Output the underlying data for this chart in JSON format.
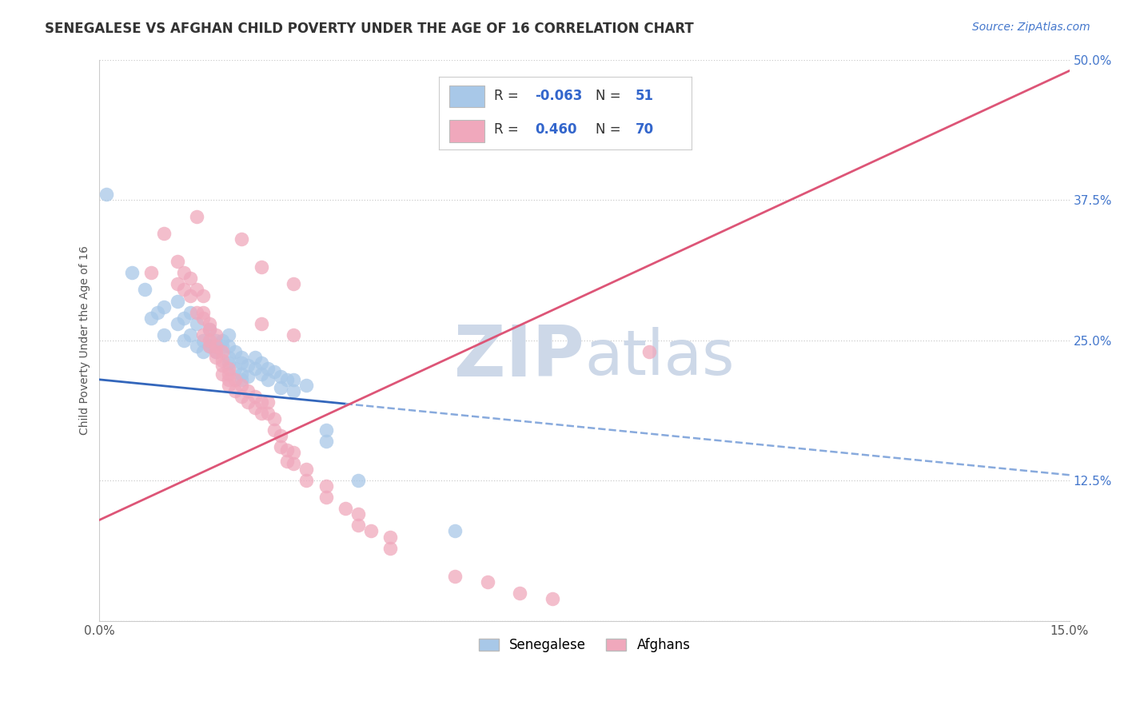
{
  "title": "SENEGALESE VS AFGHAN CHILD POVERTY UNDER THE AGE OF 16 CORRELATION CHART",
  "source": "Source: ZipAtlas.com",
  "ylabel": "Child Poverty Under the Age of 16",
  "xlim": [
    0.0,
    0.15
  ],
  "ylim": [
    0.0,
    0.5
  ],
  "yticks": [
    0.0,
    0.125,
    0.25,
    0.375,
    0.5
  ],
  "yticklabels": [
    "",
    "12.5%",
    "25.0%",
    "37.5%",
    "50.0%"
  ],
  "blue_color": "#a8c8e8",
  "pink_color": "#f0a8bc",
  "line_blue_solid_color": "#3366bb",
  "line_blue_dash_color": "#88aadd",
  "line_pink_color": "#dd5577",
  "watermark_zip": "ZIP",
  "watermark_atlas": "atlas",
  "watermark_color": "#cdd8e8",
  "title_fontsize": 12,
  "source_fontsize": 10,
  "axis_label_fontsize": 10,
  "tick_fontsize": 11,
  "blue_scatter": [
    [
      0.001,
      0.38
    ],
    [
      0.005,
      0.31
    ],
    [
      0.007,
      0.295
    ],
    [
      0.008,
      0.27
    ],
    [
      0.009,
      0.275
    ],
    [
      0.01,
      0.255
    ],
    [
      0.01,
      0.28
    ],
    [
      0.012,
      0.265
    ],
    [
      0.012,
      0.285
    ],
    [
      0.013,
      0.25
    ],
    [
      0.013,
      0.27
    ],
    [
      0.014,
      0.255
    ],
    [
      0.014,
      0.275
    ],
    [
      0.015,
      0.245
    ],
    [
      0.015,
      0.265
    ],
    [
      0.016,
      0.25
    ],
    [
      0.016,
      0.24
    ],
    [
      0.017,
      0.245
    ],
    [
      0.017,
      0.26
    ],
    [
      0.018,
      0.25
    ],
    [
      0.018,
      0.24
    ],
    [
      0.019,
      0.25
    ],
    [
      0.019,
      0.245
    ],
    [
      0.02,
      0.245
    ],
    [
      0.02,
      0.255
    ],
    [
      0.02,
      0.235
    ],
    [
      0.02,
      0.23
    ],
    [
      0.021,
      0.24
    ],
    [
      0.021,
      0.225
    ],
    [
      0.022,
      0.235
    ],
    [
      0.022,
      0.215
    ],
    [
      0.022,
      0.23
    ],
    [
      0.022,
      0.22
    ],
    [
      0.023,
      0.228
    ],
    [
      0.023,
      0.218
    ],
    [
      0.024,
      0.225
    ],
    [
      0.024,
      0.235
    ],
    [
      0.025,
      0.22
    ],
    [
      0.025,
      0.23
    ],
    [
      0.026,
      0.225
    ],
    [
      0.026,
      0.215
    ],
    [
      0.027,
      0.222
    ],
    [
      0.028,
      0.218
    ],
    [
      0.028,
      0.208
    ],
    [
      0.029,
      0.215
    ],
    [
      0.03,
      0.205
    ],
    [
      0.03,
      0.215
    ],
    [
      0.032,
      0.21
    ],
    [
      0.035,
      0.17
    ],
    [
      0.035,
      0.16
    ],
    [
      0.04,
      0.125
    ],
    [
      0.055,
      0.08
    ]
  ],
  "pink_scatter": [
    [
      0.008,
      0.31
    ],
    [
      0.01,
      0.345
    ],
    [
      0.012,
      0.3
    ],
    [
      0.012,
      0.32
    ],
    [
      0.013,
      0.295
    ],
    [
      0.013,
      0.31
    ],
    [
      0.014,
      0.305
    ],
    [
      0.014,
      0.29
    ],
    [
      0.015,
      0.275
    ],
    [
      0.015,
      0.295
    ],
    [
      0.016,
      0.27
    ],
    [
      0.016,
      0.29
    ],
    [
      0.016,
      0.255
    ],
    [
      0.016,
      0.275
    ],
    [
      0.017,
      0.26
    ],
    [
      0.017,
      0.245
    ],
    [
      0.017,
      0.265
    ],
    [
      0.017,
      0.25
    ],
    [
      0.018,
      0.24
    ],
    [
      0.018,
      0.255
    ],
    [
      0.018,
      0.235
    ],
    [
      0.018,
      0.245
    ],
    [
      0.019,
      0.228
    ],
    [
      0.019,
      0.24
    ],
    [
      0.019,
      0.22
    ],
    [
      0.019,
      0.232
    ],
    [
      0.02,
      0.215
    ],
    [
      0.02,
      0.225
    ],
    [
      0.02,
      0.21
    ],
    [
      0.02,
      0.22
    ],
    [
      0.021,
      0.205
    ],
    [
      0.021,
      0.215
    ],
    [
      0.022,
      0.2
    ],
    [
      0.022,
      0.21
    ],
    [
      0.023,
      0.195
    ],
    [
      0.023,
      0.205
    ],
    [
      0.024,
      0.19
    ],
    [
      0.024,
      0.2
    ],
    [
      0.025,
      0.185
    ],
    [
      0.025,
      0.195
    ],
    [
      0.026,
      0.185
    ],
    [
      0.026,
      0.195
    ],
    [
      0.027,
      0.18
    ],
    [
      0.027,
      0.17
    ],
    [
      0.028,
      0.165
    ],
    [
      0.028,
      0.155
    ],
    [
      0.029,
      0.152
    ],
    [
      0.029,
      0.142
    ],
    [
      0.03,
      0.14
    ],
    [
      0.03,
      0.15
    ],
    [
      0.032,
      0.135
    ],
    [
      0.032,
      0.125
    ],
    [
      0.035,
      0.12
    ],
    [
      0.035,
      0.11
    ],
    [
      0.038,
      0.1
    ],
    [
      0.04,
      0.095
    ],
    [
      0.04,
      0.085
    ],
    [
      0.042,
      0.08
    ],
    [
      0.045,
      0.075
    ],
    [
      0.045,
      0.065
    ],
    [
      0.055,
      0.04
    ],
    [
      0.06,
      0.035
    ],
    [
      0.065,
      0.025
    ],
    [
      0.07,
      0.02
    ],
    [
      0.085,
      0.24
    ],
    [
      0.015,
      0.36
    ],
    [
      0.022,
      0.34
    ],
    [
      0.025,
      0.315
    ],
    [
      0.03,
      0.3
    ],
    [
      0.025,
      0.265
    ],
    [
      0.03,
      0.255
    ]
  ],
  "blue_line_x": [
    0.0,
    0.038,
    0.15
  ],
  "blue_line_y": [
    0.215,
    0.2,
    0.13
  ],
  "pink_line_x": [
    0.0,
    0.15
  ],
  "pink_line_y": [
    0.09,
    0.49
  ]
}
